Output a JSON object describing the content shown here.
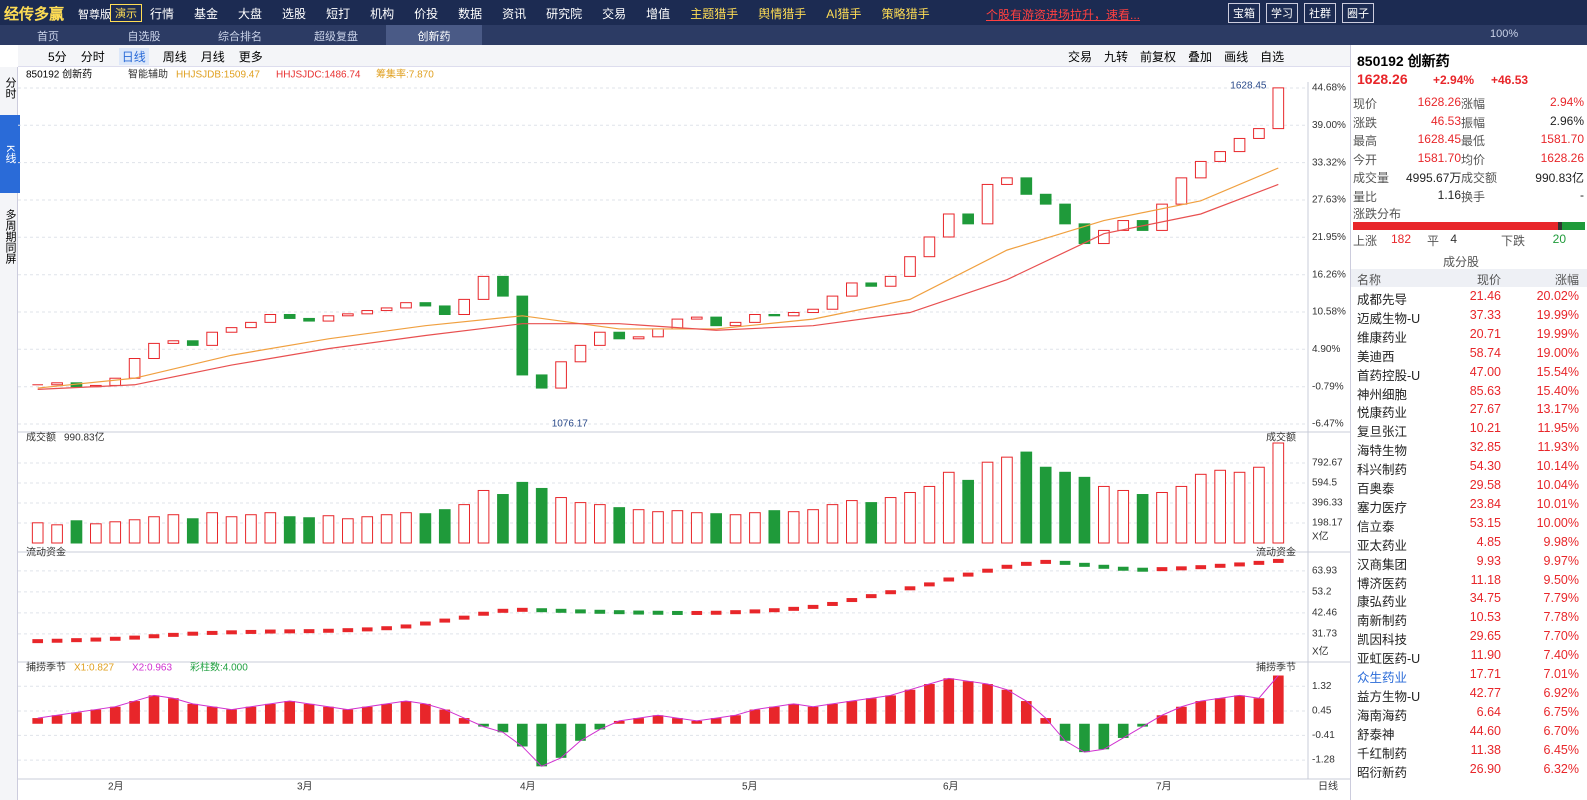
{
  "topbar": {
    "logo": "经传多赢",
    "edition": "智尊版",
    "demo": "演示",
    "menu": [
      "行情",
      "基金",
      "大盘",
      "选股",
      "短打",
      "机构",
      "价投",
      "数据",
      "资讯",
      "研究院",
      "交易",
      "增值",
      "主题猎手",
      "舆情猎手",
      "AI猎手",
      "策略猎手"
    ],
    "notice": "个股有游资进场拉升，速看...",
    "buttons": [
      "宝箱",
      "学习",
      "社群",
      "圈子"
    ],
    "zoom": "100%"
  },
  "tabs": [
    "首页",
    "自选股",
    "综合排名",
    "超级复盘",
    "创新药"
  ],
  "toolbar": {
    "left": [
      "5分",
      "分时",
      "日线",
      "周线",
      "月线",
      "更多"
    ],
    "right": [
      "交易",
      "九转",
      "前复权",
      "叠加",
      "画线",
      "自选"
    ]
  },
  "side": [
    "分时",
    "K线",
    "多周期同屏"
  ],
  "chart_header": {
    "code": "850192 创新药",
    "assist": "智能辅助",
    "indicators": [
      "HHJSJDB:1509.47",
      "HHJSJDC:1486.74",
      "筹集率:7.870"
    ]
  },
  "chart_data": [
    {
      "type": "candlestick",
      "title": "850192 创新药",
      "closes": [
        -0.5,
        -0.2,
        -0.8,
        -0.6,
        0.5,
        3.5,
        5.8,
        6.2,
        5.5,
        7.5,
        8.2,
        9.0,
        10.2,
        9.6,
        9.2,
        10.0,
        10.3,
        10.8,
        11.2,
        12.0,
        11.5,
        10.2,
        12.5,
        16.0,
        13.0,
        1.0,
        -1.0,
        3.0,
        5.5,
        7.5,
        6.5,
        6.8,
        8.0,
        9.5,
        9.8,
        8.5,
        9.0,
        10.2,
        10.0,
        10.5,
        11.0,
        13.0,
        15.0,
        14.5,
        16.0,
        19.0,
        22.0,
        25.5,
        24.0,
        30.0,
        31.0,
        28.5,
        27.0,
        24.0,
        21.0,
        23.0,
        24.5,
        23.0,
        27.0,
        31.0,
        33.5,
        35.0,
        37.0,
        38.5,
        44.7
      ],
      "up_color": "#e8262a",
      "down_color": "#1f9a3a",
      "ma": [
        {
          "color": "#f0a040",
          "x": [
            0,
            5,
            10,
            15,
            20,
            25,
            30,
            35,
            40,
            45,
            50,
            55,
            60,
            64
          ],
          "values": [
            -1.0,
            0.5,
            4.0,
            6.5,
            8.5,
            10.0,
            8.0,
            8.0,
            9.5,
            12.5,
            20.0,
            24.5,
            27.5,
            32.5
          ]
        },
        {
          "color": "#e85050",
          "x": [
            0,
            5,
            10,
            15,
            20,
            25,
            30,
            35,
            40,
            45,
            50,
            55,
            60,
            64
          ],
          "values": [
            -1.2,
            -0.5,
            2.5,
            5.0,
            7.0,
            8.8,
            8.8,
            7.8,
            8.5,
            10.5,
            15.5,
            22.5,
            25.5,
            30.0
          ]
        }
      ],
      "ylim": [
        -6.47,
        44.68
      ],
      "yticks": [
        {
          "value": 44.68,
          "label": "44.68%"
        },
        {
          "value": 39.0,
          "label": "39.00%"
        },
        {
          "value": 33.32,
          "label": "33.32%"
        },
        {
          "value": 27.63,
          "label": "27.63%"
        },
        {
          "value": 21.95,
          "label": "21.95%"
        },
        {
          "value": 16.26,
          "label": "16.26%"
        },
        {
          "value": 10.58,
          "label": "10.58%"
        },
        {
          "value": 4.9,
          "label": "4.90%"
        },
        {
          "value": -0.79,
          "label": "-0.79%"
        },
        {
          "value": -6.47,
          "label": "-6.47%"
        }
      ],
      "annotations": [
        "1628.45",
        "1076.17"
      ],
      "months": [
        "2月",
        "3月",
        "4月",
        "5月",
        "6月",
        "7月"
      ],
      "period": "日线"
    },
    {
      "type": "bar",
      "title": "成交额",
      "subtitle": "990.83亿",
      "unit": "X亿",
      "values": [
        200,
        180,
        220,
        190,
        210,
        230,
        260,
        280,
        240,
        300,
        260,
        280,
        300,
        260,
        250,
        270,
        240,
        260,
        280,
        300,
        290,
        330,
        380,
        520,
        480,
        600,
        540,
        450,
        400,
        380,
        350,
        330,
        310,
        320,
        300,
        290,
        280,
        300,
        320,
        310,
        330,
        380,
        420,
        400,
        450,
        500,
        560,
        700,
        620,
        800,
        850,
        900,
        750,
        700,
        650,
        560,
        520,
        480,
        500,
        560,
        680,
        720,
        700,
        750,
        990
      ],
      "ylim": [
        0,
        1000
      ],
      "yticks": [
        198.17,
        396.33,
        594.5,
        792.67
      ]
    },
    {
      "type": "flow",
      "title": "流动资金",
      "unit": "X亿",
      "values": [
        28,
        28.2,
        28.5,
        28.8,
        29.2,
        29.8,
        30.5,
        31.2,
        31.8,
        32.2,
        32.5,
        32.7,
        32.9,
        33.0,
        33.1,
        33.3,
        33.6,
        34.0,
        34.6,
        35.5,
        37,
        38.5,
        40,
        42,
        43.5,
        44,
        43.8,
        43.5,
        43.2,
        43,
        42.8,
        42.6,
        42.5,
        42.4,
        42.4,
        42.5,
        42.8,
        43.2,
        43.8,
        44.5,
        45.5,
        47,
        49,
        51,
        53,
        55,
        57,
        59.5,
        62,
        64,
        66,
        67.5,
        68.5,
        68,
        67,
        66,
        65,
        64.5,
        64.8,
        65.2,
        65.8,
        66.5,
        67.2,
        68,
        69
      ],
      "ylim": [
        25,
        71
      ],
      "yticks": [
        31.73,
        42.46,
        53.2,
        63.93
      ]
    },
    {
      "type": "oscillator",
      "title": "捕捞季节",
      "indicators": [
        "X1:0.827",
        "X2:0.963",
        "彩柱数:4.000"
      ],
      "values": [
        0.2,
        0.3,
        0.4,
        0.5,
        0.6,
        0.8,
        1.0,
        0.9,
        0.7,
        0.6,
        0.5,
        0.6,
        0.7,
        0.8,
        0.7,
        0.6,
        0.5,
        0.6,
        0.7,
        0.8,
        0.7,
        0.5,
        0.2,
        -0.1,
        -0.3,
        -0.8,
        -1.5,
        -1.2,
        -0.6,
        -0.2,
        0.1,
        0.2,
        0.3,
        0.2,
        0.1,
        0.2,
        0.3,
        0.5,
        0.6,
        0.7,
        0.6,
        0.7,
        0.8,
        0.9,
        1.0,
        1.2,
        1.4,
        1.6,
        1.5,
        1.4,
        1.2,
        0.8,
        0.2,
        -0.6,
        -1.0,
        -0.9,
        -0.5,
        -0.1,
        0.3,
        0.6,
        0.8,
        0.9,
        1.0,
        0.9,
        1.7
      ],
      "ylim": [
        -1.7,
        2.0
      ],
      "yticks": [
        -1.28,
        -0.41,
        0.45,
        1.32
      ]
    }
  ],
  "quote": {
    "title": "850192 创新药",
    "price": "1628.26",
    "pct": "+2.94%",
    "change": "+46.53",
    "rows": [
      [
        "现价",
        "1628.26",
        "涨幅",
        "2.94%"
      ],
      [
        "涨跌",
        "46.53",
        "振幅",
        "2.96%"
      ],
      [
        "最高",
        "1628.45",
        "最低",
        "1581.70"
      ],
      [
        "今开",
        "1581.70",
        "均价",
        "1628.26"
      ],
      [
        "成交量",
        "4995.67万",
        "成交额",
        "990.83亿"
      ],
      [
        "量比",
        "1.16",
        "换手",
        "-"
      ]
    ]
  },
  "distribution": {
    "title": "涨跌分布",
    "labels": [
      "上涨",
      "平",
      "下跌"
    ],
    "values": [
      182,
      4,
      20
    ],
    "colors": [
      "#e8262a",
      "#333333",
      "#1f9a3a"
    ]
  },
  "constituents": {
    "title": "成分股",
    "header": [
      "名称",
      "现价",
      "涨幅"
    ],
    "rows": [
      [
        "成都先导",
        "21.46",
        "20.02%"
      ],
      [
        "迈威生物-U",
        "37.33",
        "19.99%"
      ],
      [
        "维康药业",
        "20.71",
        "19.99%"
      ],
      [
        "美迪西",
        "58.74",
        "19.00%"
      ],
      [
        "首药控股-U",
        "47.00",
        "15.54%"
      ],
      [
        "神州细胞",
        "85.63",
        "15.40%"
      ],
      [
        "悦康药业",
        "27.67",
        "13.17%"
      ],
      [
        "复旦张江",
        "10.21",
        "11.95%"
      ],
      [
        "海特生物",
        "32.85",
        "11.93%"
      ],
      [
        "科兴制药",
        "54.30",
        "10.14%"
      ],
      [
        "百奥泰",
        "29.58",
        "10.04%"
      ],
      [
        "塞力医疗",
        "23.84",
        "10.01%"
      ],
      [
        "信立泰",
        "53.15",
        "10.00%"
      ],
      [
        "亚太药业",
        "4.85",
        "9.98%"
      ],
      [
        "汉商集团",
        "9.93",
        "9.97%"
      ],
      [
        "博济医药",
        "11.18",
        "9.50%"
      ],
      [
        "康弘药业",
        "34.75",
        "7.79%"
      ],
      [
        "南新制药",
        "10.53",
        "7.78%"
      ],
      [
        "凯因科技",
        "29.65",
        "7.70%"
      ],
      [
        "亚虹医药-U",
        "11.90",
        "7.40%"
      ],
      [
        "众生药业",
        "17.71",
        "7.01%"
      ],
      [
        "益方生物-U",
        "42.77",
        "6.92%"
      ],
      [
        "海南海药",
        "6.64",
        "6.75%"
      ],
      [
        "舒泰神",
        "44.60",
        "6.70%"
      ],
      [
        "千红制药",
        "11.38",
        "6.45%"
      ],
      [
        "昭衍新药",
        "26.90",
        "6.32%"
      ]
    ]
  }
}
